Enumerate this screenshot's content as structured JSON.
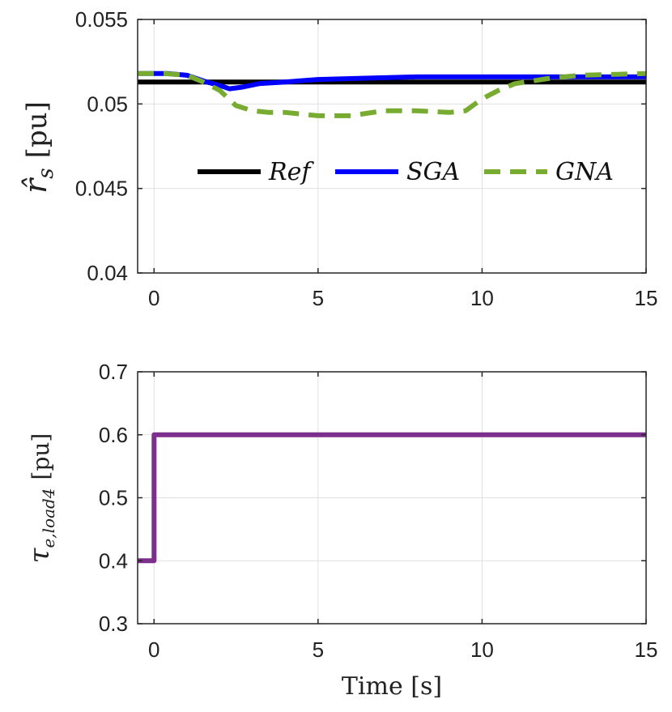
{
  "chart_data": [
    {
      "type": "line",
      "ylabel": "r̂s [pu]",
      "ylabel_parts": {
        "symbol": "r̂",
        "subscript": "s",
        "unit": "[pu]"
      },
      "xlim": [
        -0.5,
        15
      ],
      "ylim": [
        0.04,
        0.055
      ],
      "xticks": [
        "0",
        "5",
        "10",
        "15"
      ],
      "yticks": [
        "0.04",
        "0.045",
        "0.05",
        "0.055"
      ],
      "grid": true,
      "legend": "center-right",
      "series": [
        {
          "name": "Ref",
          "color": "#000000",
          "style": "solid",
          "x": [
            -0.5,
            15
          ],
          "y": [
            0.0513,
            0.0513
          ]
        },
        {
          "name": "SGA",
          "color": "#0000ff",
          "style": "solid",
          "x": [
            -0.5,
            0.4,
            1.0,
            1.6,
            2.0,
            2.3,
            2.7,
            3.2,
            4.0,
            5.0,
            6.0,
            8.0,
            10.0,
            12.0,
            15.0
          ],
          "y": [
            0.0518,
            0.0518,
            0.0517,
            0.0513,
            0.0511,
            0.0509,
            0.051,
            0.0512,
            0.0513,
            0.05145,
            0.0515,
            0.0516,
            0.0516,
            0.0516,
            0.0516
          ]
        },
        {
          "name": "GNA",
          "color": "#77ac30",
          "style": "dashed",
          "x": [
            -0.5,
            0.3,
            1.0,
            1.5,
            2.0,
            2.5,
            3.0,
            3.5,
            4.0,
            5.0,
            6.0,
            7.0,
            8.0,
            9.0,
            9.5,
            10.0,
            10.5,
            11.0,
            12.0,
            13.0,
            15.0
          ],
          "y": [
            0.0518,
            0.0518,
            0.0517,
            0.0513,
            0.0508,
            0.0499,
            0.0496,
            0.0495,
            0.0495,
            0.0493,
            0.0493,
            0.0496,
            0.0496,
            0.0495,
            0.0496,
            0.0503,
            0.0508,
            0.0512,
            0.0515,
            0.0517,
            0.0518
          ]
        }
      ]
    },
    {
      "type": "line",
      "ylabel": "τe,load4 [pu]",
      "ylabel_parts": {
        "symbol": "τ",
        "subscript": "e,load4",
        "unit": "[pu]"
      },
      "xlabel": "Time [s]",
      "xlim": [
        -0.5,
        15
      ],
      "ylim": [
        0.3,
        0.7
      ],
      "xticks": [
        "0",
        "5",
        "10",
        "15"
      ],
      "yticks": [
        "0.3",
        "0.4",
        "0.5",
        "0.6",
        "0.7"
      ],
      "grid": true,
      "series": [
        {
          "color": "#7e2f8e",
          "style": "solid",
          "x": [
            -0.5,
            0.0,
            0.0,
            15.0
          ],
          "y": [
            0.4,
            0.4,
            0.6,
            0.6
          ]
        }
      ]
    }
  ]
}
